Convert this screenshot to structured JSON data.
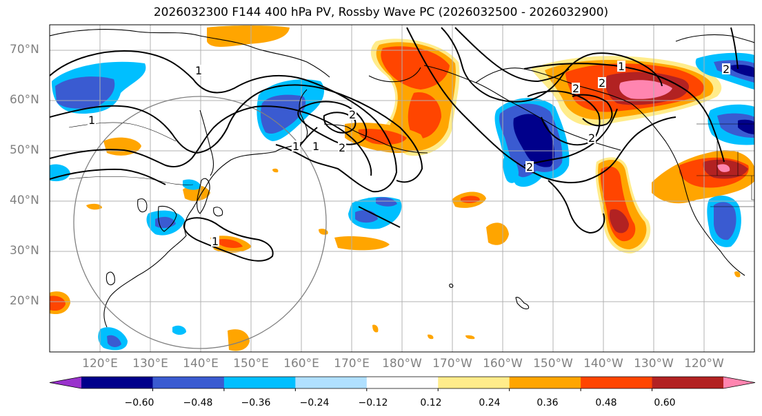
{
  "title": "2026032300 F144 400 hPa PV, Rossby Wave PC (2026032500 - 2026032900)",
  "lat_labels": [
    "70°N",
    "60°N",
    "50°N",
    "40°N",
    "30°N",
    "20°N"
  ],
  "lon_labels": [
    "120°E",
    "130°E",
    "140°E",
    "150°E",
    "160°E",
    "170°E",
    "180°W",
    "170°W",
    "160°W",
    "150°W",
    "140°W",
    "130°W",
    "120°W"
  ],
  "contour_labels": [
    "1",
    "1",
    "1",
    "1",
    "2",
    "2",
    "1",
    "2",
    "2",
    "2",
    "1",
    "2",
    "2"
  ],
  "colorbar": {
    "ticks": [
      "−0.60",
      "−0.48",
      "−0.36",
      "−0.24",
      "−0.12",
      "0.12",
      "0.24",
      "0.36",
      "0.48",
      "0.60"
    ],
    "colors": [
      "#9932cc",
      "#00008b",
      "#3a5bd1",
      "#00bfff",
      "#b0e0ff",
      "#ffffff",
      "#ffec8b",
      "#ffa500",
      "#ff4500",
      "#b22222",
      "#ff85b0"
    ],
    "bounds": [
      -0.72,
      -0.6,
      -0.48,
      -0.36,
      -0.24,
      -0.12,
      0.12,
      0.24,
      0.36,
      0.48,
      0.6,
      0.72
    ]
  },
  "palette": {
    "neg1": "#b0e0ff",
    "neg2": "#00bfff",
    "neg3": "#3a5bd1",
    "neg4": "#00008b",
    "pos1": "#ffec8b",
    "pos2": "#ffa500",
    "pos3": "#ff4500",
    "pos4": "#b22222",
    "pos5": "#ff85b0",
    "grid": "#b0b0b0",
    "circle": "#808080",
    "contour": "#000000"
  }
}
